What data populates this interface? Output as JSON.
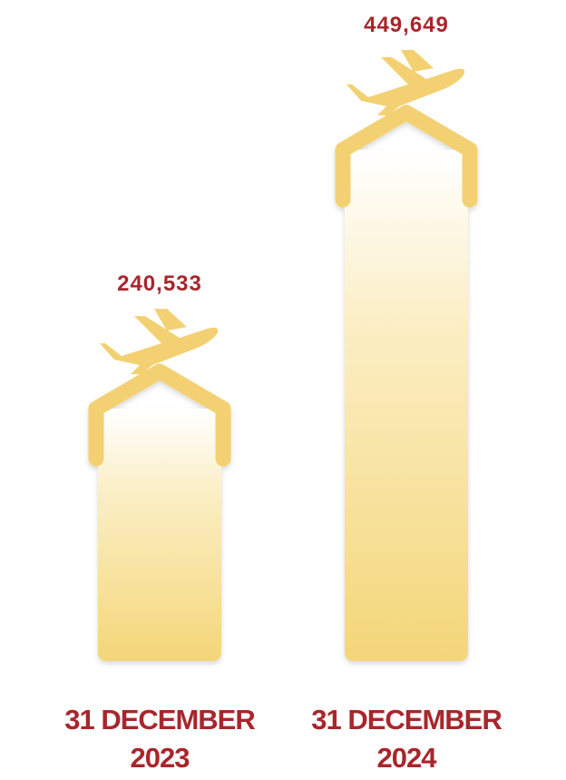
{
  "chart_data": {
    "type": "bar",
    "categories": [
      "31 DECEMBER 2023",
      "31 DECEMBER 2024"
    ],
    "values": [
      240533,
      449649
    ],
    "value_labels": [
      "240,533",
      "449,649"
    ],
    "color": "#f3d173",
    "label_color": "#a8262c"
  }
}
